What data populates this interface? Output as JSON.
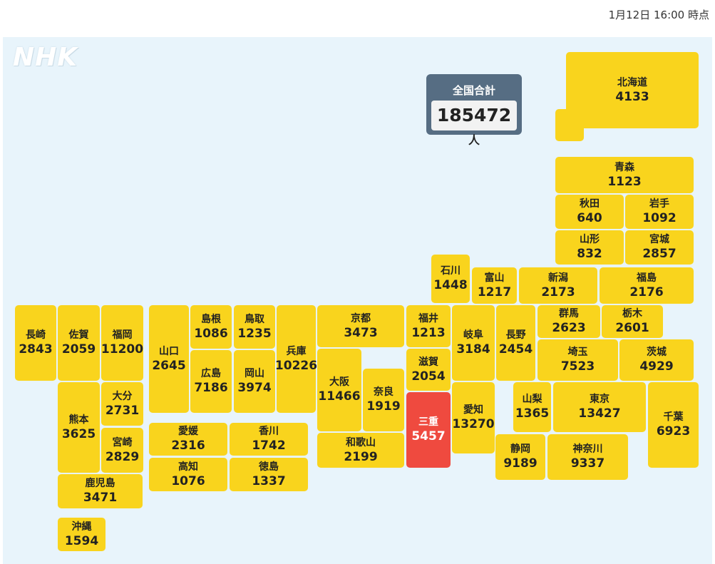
{
  "timestamp": "1月12日 16:00 時点",
  "logo": "NHK",
  "total": {
    "label": "全国合計",
    "value": "185472",
    "unit": "人"
  },
  "colors": {
    "normal": "#f9d41d",
    "highlight": "#ef4a3f",
    "background": "#e8f4fb"
  },
  "prefectures": [
    {
      "id": "hokkaido",
      "name": "北海道",
      "count": "4133"
    },
    {
      "id": "aomori",
      "name": "青森",
      "count": "1123"
    },
    {
      "id": "akita",
      "name": "秋田",
      "count": "640"
    },
    {
      "id": "iwate",
      "name": "岩手",
      "count": "1092"
    },
    {
      "id": "yamagata",
      "name": "山形",
      "count": "832"
    },
    {
      "id": "miyagi",
      "name": "宮城",
      "count": "2857"
    },
    {
      "id": "ishikawa",
      "name": "石川",
      "count": "1448"
    },
    {
      "id": "toyama",
      "name": "富山",
      "count": "1217"
    },
    {
      "id": "niigata",
      "name": "新潟",
      "count": "2173"
    },
    {
      "id": "fukushima",
      "name": "福島",
      "count": "2176"
    },
    {
      "id": "nagasaki",
      "name": "長崎",
      "count": "2843"
    },
    {
      "id": "saga",
      "name": "佐賀",
      "count": "2059"
    },
    {
      "id": "fukuoka",
      "name": "福岡",
      "count": "11200"
    },
    {
      "id": "yamaguchi",
      "name": "山口",
      "count": "2645"
    },
    {
      "id": "shimane",
      "name": "島根",
      "count": "1086"
    },
    {
      "id": "tottori",
      "name": "鳥取",
      "count": "1235"
    },
    {
      "id": "hyogo",
      "name": "兵庫",
      "count": "10226"
    },
    {
      "id": "kyoto",
      "name": "京都",
      "count": "3473"
    },
    {
      "id": "fukui",
      "name": "福井",
      "count": "1213"
    },
    {
      "id": "gifu",
      "name": "岐阜",
      "count": "3184"
    },
    {
      "id": "nagano",
      "name": "長野",
      "count": "2454"
    },
    {
      "id": "gunma",
      "name": "群馬",
      "count": "2623"
    },
    {
      "id": "tochigi",
      "name": "栃木",
      "count": "2601"
    },
    {
      "id": "hiroshima",
      "name": "広島",
      "count": "7186"
    },
    {
      "id": "okayama",
      "name": "岡山",
      "count": "3974"
    },
    {
      "id": "osaka",
      "name": "大阪",
      "count": "11466"
    },
    {
      "id": "nara",
      "name": "奈良",
      "count": "1919"
    },
    {
      "id": "shiga",
      "name": "滋賀",
      "count": "2054"
    },
    {
      "id": "saitama",
      "name": "埼玉",
      "count": "7523"
    },
    {
      "id": "ibaraki",
      "name": "茨城",
      "count": "4929"
    },
    {
      "id": "oita",
      "name": "大分",
      "count": "2731"
    },
    {
      "id": "kumamoto",
      "name": "熊本",
      "count": "3625"
    },
    {
      "id": "miyazaki",
      "name": "宮崎",
      "count": "2829"
    },
    {
      "id": "mie",
      "name": "三重",
      "count": "5457",
      "highlight": true
    },
    {
      "id": "aichi",
      "name": "愛知",
      "count": "13270"
    },
    {
      "id": "yamanashi",
      "name": "山梨",
      "count": "1365"
    },
    {
      "id": "tokyo",
      "name": "東京",
      "count": "13427"
    },
    {
      "id": "chiba",
      "name": "千葉",
      "count": "6923"
    },
    {
      "id": "ehime",
      "name": "愛媛",
      "count": "2316"
    },
    {
      "id": "kagawa",
      "name": "香川",
      "count": "1742"
    },
    {
      "id": "wakayama",
      "name": "和歌山",
      "count": "2199"
    },
    {
      "id": "kochi",
      "name": "高知",
      "count": "1076"
    },
    {
      "id": "tokushima",
      "name": "徳島",
      "count": "1337"
    },
    {
      "id": "shizuoka",
      "name": "静岡",
      "count": "9189"
    },
    {
      "id": "kanagawa",
      "name": "神奈川",
      "count": "9337"
    },
    {
      "id": "kagoshima",
      "name": "鹿児島",
      "count": "3471"
    },
    {
      "id": "okinawa",
      "name": "沖縄",
      "count": "1594"
    }
  ]
}
